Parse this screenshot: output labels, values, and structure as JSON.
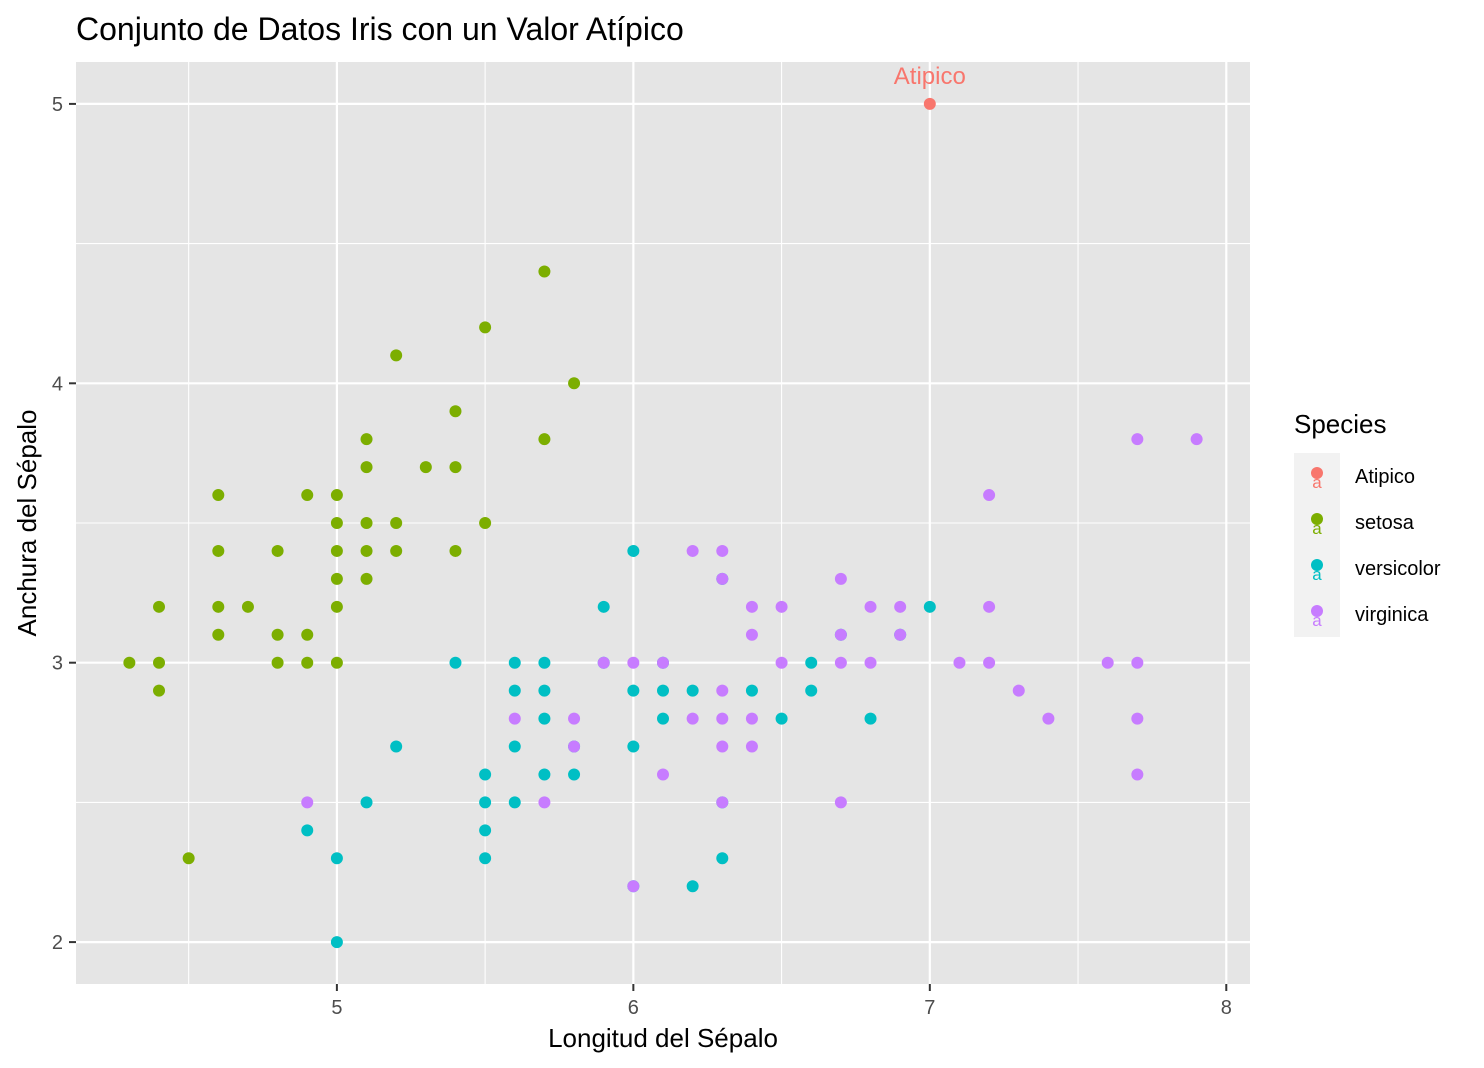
{
  "chart_data": {
    "type": "scatter",
    "title": "Conjunto de Datos Iris con un Valor Atípico",
    "xlabel": "Longitud del Sépalo",
    "ylabel": "Anchura del Sépalo",
    "xlim": [
      4.12,
      8.08
    ],
    "ylim": [
      1.85,
      5.15
    ],
    "x_ticks": [
      5,
      6,
      7,
      8
    ],
    "y_ticks": [
      2,
      3,
      4,
      5
    ],
    "x_tick_labels": [
      "5",
      "6",
      "7",
      "8"
    ],
    "y_tick_labels": [
      "2",
      "3",
      "4",
      "5"
    ],
    "grid": true,
    "legend": {
      "title": "Species",
      "position": "right"
    },
    "series": [
      {
        "name": "Atipico",
        "color": "#F8766D",
        "points": [
          [
            7.0,
            5.0
          ]
        ]
      },
      {
        "name": "setosa",
        "color": "#7CAE00",
        "points": [
          [
            4.3,
            3.0
          ],
          [
            4.4,
            3.2
          ],
          [
            4.4,
            3.0
          ],
          [
            4.4,
            2.9
          ],
          [
            4.5,
            2.3
          ],
          [
            4.6,
            3.6
          ],
          [
            4.6,
            3.4
          ],
          [
            4.6,
            3.2
          ],
          [
            4.6,
            3.1
          ],
          [
            4.7,
            3.2
          ],
          [
            4.8,
            3.4
          ],
          [
            4.8,
            3.1
          ],
          [
            4.8,
            3.0
          ],
          [
            4.9,
            3.6
          ],
          [
            4.9,
            3.1
          ],
          [
            4.9,
            3.0
          ],
          [
            5.0,
            3.6
          ],
          [
            5.0,
            3.5
          ],
          [
            5.0,
            3.4
          ],
          [
            5.0,
            3.3
          ],
          [
            5.0,
            3.2
          ],
          [
            5.0,
            3.0
          ],
          [
            5.1,
            3.8
          ],
          [
            5.1,
            3.7
          ],
          [
            5.1,
            3.5
          ],
          [
            5.1,
            3.4
          ],
          [
            5.1,
            3.3
          ],
          [
            5.2,
            4.1
          ],
          [
            5.2,
            3.5
          ],
          [
            5.2,
            3.4
          ],
          [
            5.3,
            3.7
          ],
          [
            5.4,
            3.9
          ],
          [
            5.4,
            3.7
          ],
          [
            5.4,
            3.4
          ],
          [
            5.5,
            4.2
          ],
          [
            5.5,
            3.5
          ],
          [
            5.7,
            4.4
          ],
          [
            5.7,
            3.8
          ],
          [
            5.8,
            4.0
          ]
        ]
      },
      {
        "name": "versicolor",
        "color": "#00BFC4",
        "points": [
          [
            4.9,
            2.4
          ],
          [
            5.0,
            2.3
          ],
          [
            5.0,
            2.0
          ],
          [
            5.1,
            2.5
          ],
          [
            5.2,
            2.7
          ],
          [
            5.4,
            3.0
          ],
          [
            5.5,
            2.6
          ],
          [
            5.5,
            2.5
          ],
          [
            5.5,
            2.4
          ],
          [
            5.5,
            2.3
          ],
          [
            5.6,
            3.0
          ],
          [
            5.6,
            2.9
          ],
          [
            5.6,
            2.7
          ],
          [
            5.6,
            2.5
          ],
          [
            5.7,
            3.0
          ],
          [
            5.7,
            2.9
          ],
          [
            5.7,
            2.8
          ],
          [
            5.7,
            2.6
          ],
          [
            5.8,
            2.7
          ],
          [
            5.8,
            2.6
          ],
          [
            5.9,
            3.2
          ],
          [
            5.9,
            3.0
          ],
          [
            6.0,
            3.4
          ],
          [
            6.0,
            2.9
          ],
          [
            6.0,
            2.7
          ],
          [
            6.0,
            2.2
          ],
          [
            6.1,
            3.0
          ],
          [
            6.1,
            2.9
          ],
          [
            6.1,
            2.8
          ],
          [
            6.2,
            2.9
          ],
          [
            6.2,
            2.2
          ],
          [
            6.3,
            3.3
          ],
          [
            6.3,
            2.5
          ],
          [
            6.3,
            2.3
          ],
          [
            6.4,
            2.9
          ],
          [
            6.5,
            2.8
          ],
          [
            6.6,
            3.0
          ],
          [
            6.6,
            2.9
          ],
          [
            6.7,
            3.1
          ],
          [
            6.8,
            2.8
          ],
          [
            6.9,
            3.1
          ],
          [
            7.0,
            3.2
          ]
        ]
      },
      {
        "name": "virginica",
        "color": "#C77CFF",
        "points": [
          [
            4.9,
            2.5
          ],
          [
            5.6,
            2.8
          ],
          [
            5.7,
            2.5
          ],
          [
            5.8,
            2.8
          ],
          [
            5.8,
            2.7
          ],
          [
            5.9,
            3.0
          ],
          [
            6.0,
            3.0
          ],
          [
            6.0,
            2.2
          ],
          [
            6.1,
            3.0
          ],
          [
            6.1,
            2.6
          ],
          [
            6.2,
            3.4
          ],
          [
            6.2,
            2.8
          ],
          [
            6.3,
            3.4
          ],
          [
            6.3,
            3.3
          ],
          [
            6.3,
            2.9
          ],
          [
            6.3,
            2.8
          ],
          [
            6.3,
            2.7
          ],
          [
            6.3,
            2.5
          ],
          [
            6.4,
            3.2
          ],
          [
            6.4,
            3.1
          ],
          [
            6.4,
            2.8
          ],
          [
            6.4,
            2.7
          ],
          [
            6.5,
            3.2
          ],
          [
            6.5,
            3.0
          ],
          [
            6.7,
            3.3
          ],
          [
            6.7,
            3.1
          ],
          [
            6.7,
            3.0
          ],
          [
            6.7,
            2.5
          ],
          [
            6.8,
            3.2
          ],
          [
            6.8,
            3.0
          ],
          [
            6.9,
            3.2
          ],
          [
            6.9,
            3.1
          ],
          [
            7.1,
            3.0
          ],
          [
            7.2,
            3.6
          ],
          [
            7.2,
            3.2
          ],
          [
            7.2,
            3.0
          ],
          [
            7.3,
            2.9
          ],
          [
            7.4,
            2.8
          ],
          [
            7.6,
            3.0
          ],
          [
            7.7,
            3.8
          ],
          [
            7.7,
            3.0
          ],
          [
            7.7,
            2.8
          ],
          [
            7.7,
            2.6
          ],
          [
            7.9,
            3.8
          ]
        ]
      }
    ],
    "annotations": [
      {
        "text": "Atipico",
        "x": 7.0,
        "y": 5.0,
        "color": "#F8766D"
      }
    ]
  },
  "colors": {
    "panel_background": "#E5E5E5",
    "grid_major": "#FFFFFF",
    "tick_text": "#4D4D4D",
    "legend_key_background": "#F2F2F2"
  }
}
